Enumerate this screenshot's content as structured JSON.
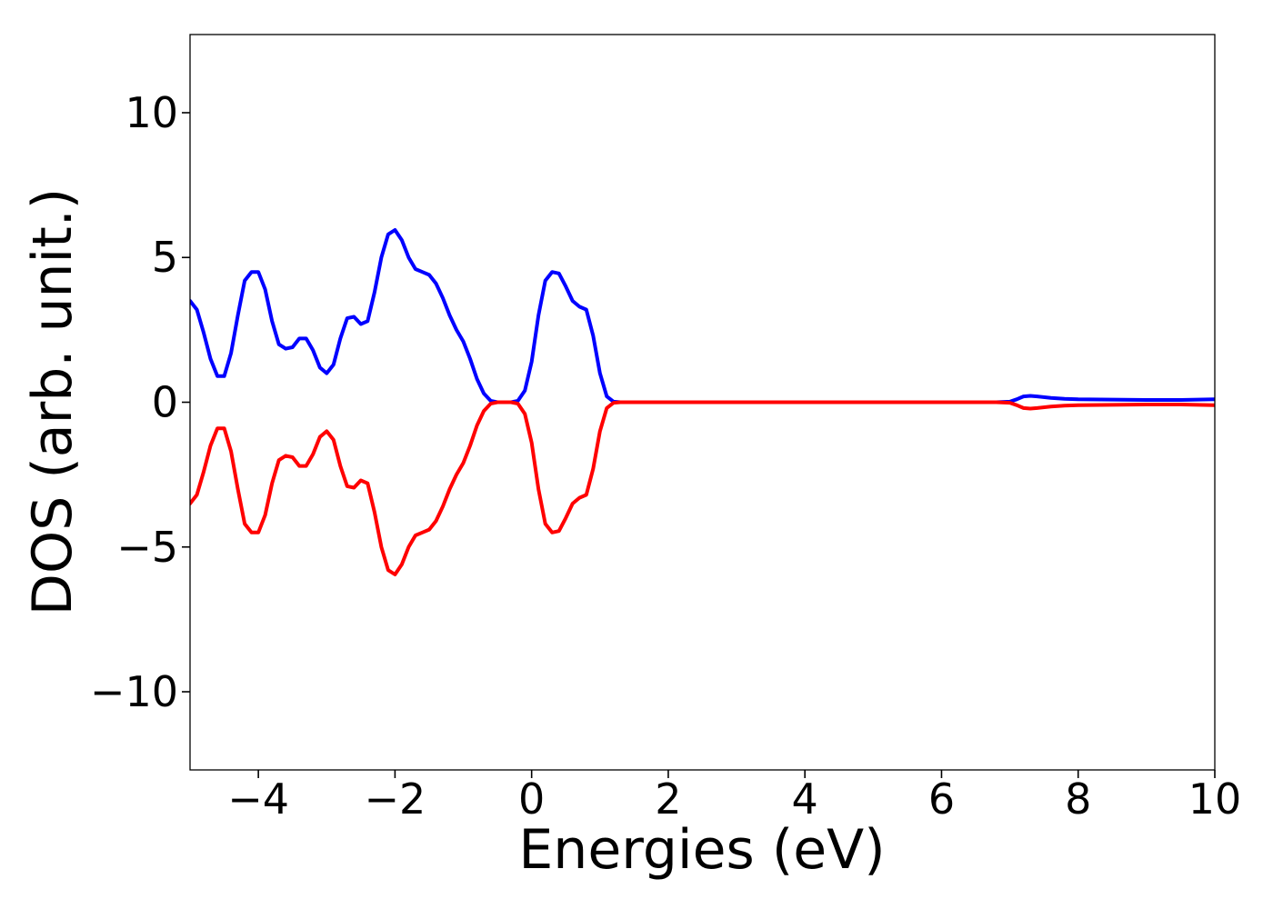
{
  "chart_data": {
    "type": "line",
    "title": "",
    "xlabel": "Energies (eV)",
    "ylabel": "DOS (arb. unit.)",
    "xlim": [
      -5,
      10
    ],
    "ylim": [
      -12.7,
      12.7
    ],
    "xticks": [
      -4,
      -2,
      0,
      2,
      4,
      6,
      8,
      10
    ],
    "xtick_labels": [
      "−4",
      "−2",
      "0",
      "2",
      "4",
      "6",
      "8",
      "10"
    ],
    "yticks": [
      -10,
      -5,
      0,
      5,
      10
    ],
    "ytick_labels": [
      "−10",
      "−5",
      "0",
      "5",
      "10"
    ],
    "grid": false,
    "legend": "none",
    "series": [
      {
        "color": "#0000ff",
        "x": [
          -5.0,
          -4.9,
          -4.8,
          -4.7,
          -4.6,
          -4.5,
          -4.4,
          -4.3,
          -4.2,
          -4.1,
          -4.0,
          -3.9,
          -3.8,
          -3.7,
          -3.6,
          -3.5,
          -3.4,
          -3.3,
          -3.2,
          -3.1,
          -3.0,
          -2.9,
          -2.8,
          -2.7,
          -2.6,
          -2.5,
          -2.4,
          -2.3,
          -2.2,
          -2.1,
          -2.0,
          -1.9,
          -1.8,
          -1.7,
          -1.6,
          -1.5,
          -1.4,
          -1.3,
          -1.2,
          -1.1,
          -1.0,
          -0.9,
          -0.8,
          -0.7,
          -0.6,
          -0.5,
          -0.4,
          -0.3,
          -0.2,
          -0.1,
          0.0,
          0.1,
          0.2,
          0.3,
          0.4,
          0.5,
          0.6,
          0.7,
          0.8,
          0.9,
          1.0,
          1.1,
          1.2,
          1.3,
          1.4,
          1.5,
          1.6,
          1.7,
          1.8,
          1.9,
          2.0,
          2.1,
          2.5,
          3.0,
          4.0,
          5.0,
          6.0,
          6.8,
          7.0,
          7.1,
          7.2,
          7.3,
          7.4,
          7.6,
          7.8,
          8.0,
          8.5,
          9.0,
          9.5,
          10.0
        ],
        "y": [
          3.5,
          3.2,
          2.4,
          1.5,
          0.9,
          0.9,
          1.7,
          3.0,
          4.2,
          4.5,
          4.5,
          3.9,
          2.8,
          2.0,
          1.85,
          1.9,
          2.2,
          2.2,
          1.8,
          1.2,
          1.0,
          1.3,
          2.2,
          2.9,
          2.95,
          2.7,
          2.8,
          3.8,
          5.0,
          5.8,
          5.95,
          5.6,
          5.0,
          4.6,
          4.5,
          4.4,
          4.1,
          3.6,
          3.0,
          2.5,
          2.1,
          1.5,
          0.8,
          0.3,
          0.05,
          0.0,
          0.0,
          0.0,
          0.05,
          0.4,
          1.4,
          3.0,
          4.2,
          4.5,
          4.45,
          4.0,
          3.5,
          3.3,
          3.2,
          2.3,
          1.0,
          0.2,
          0.02,
          0.0,
          0.0,
          0.0,
          0.0,
          0.0,
          0.0,
          0.0,
          0.0,
          0.0,
          0.0,
          0.0,
          0.0,
          0.0,
          0.0,
          0.0,
          0.02,
          0.1,
          0.2,
          0.22,
          0.2,
          0.15,
          0.12,
          0.1,
          0.09,
          0.08,
          0.08,
          0.1
        ]
      },
      {
        "color": "#ff0000",
        "x": [
          -5.0,
          -4.9,
          -4.8,
          -4.7,
          -4.6,
          -4.5,
          -4.4,
          -4.3,
          -4.2,
          -4.1,
          -4.0,
          -3.9,
          -3.8,
          -3.7,
          -3.6,
          -3.5,
          -3.4,
          -3.3,
          -3.2,
          -3.1,
          -3.0,
          -2.9,
          -2.8,
          -2.7,
          -2.6,
          -2.5,
          -2.4,
          -2.3,
          -2.2,
          -2.1,
          -2.0,
          -1.9,
          -1.8,
          -1.7,
          -1.6,
          -1.5,
          -1.4,
          -1.3,
          -1.2,
          -1.1,
          -1.0,
          -0.9,
          -0.8,
          -0.7,
          -0.6,
          -0.5,
          -0.4,
          -0.3,
          -0.2,
          -0.1,
          0.0,
          0.1,
          0.2,
          0.3,
          0.4,
          0.5,
          0.6,
          0.7,
          0.8,
          0.9,
          1.0,
          1.1,
          1.2,
          1.3,
          1.4,
          1.5,
          1.6,
          1.7,
          1.8,
          1.9,
          2.0,
          2.1,
          2.5,
          3.0,
          4.0,
          5.0,
          6.0,
          6.8,
          7.0,
          7.1,
          7.2,
          7.3,
          7.4,
          7.6,
          7.8,
          8.0,
          8.5,
          9.0,
          9.5,
          10.0
        ],
        "y": [
          -3.5,
          -3.2,
          -2.4,
          -1.5,
          -0.9,
          -0.9,
          -1.7,
          -3.0,
          -4.2,
          -4.5,
          -4.5,
          -3.9,
          -2.8,
          -2.0,
          -1.85,
          -1.9,
          -2.2,
          -2.2,
          -1.8,
          -1.2,
          -1.0,
          -1.3,
          -2.2,
          -2.9,
          -2.95,
          -2.7,
          -2.8,
          -3.8,
          -5.0,
          -5.8,
          -5.95,
          -5.6,
          -5.0,
          -4.6,
          -4.5,
          -4.4,
          -4.1,
          -3.6,
          -3.0,
          -2.5,
          -2.1,
          -1.5,
          -0.8,
          -0.3,
          -0.05,
          0.0,
          0.0,
          0.0,
          -0.05,
          -0.4,
          -1.4,
          -3.0,
          -4.2,
          -4.5,
          -4.45,
          -4.0,
          -3.5,
          -3.3,
          -3.2,
          -2.3,
          -1.0,
          -0.2,
          -0.02,
          0.0,
          0.0,
          0.0,
          0.0,
          0.0,
          0.0,
          0.0,
          0.0,
          0.0,
          0.0,
          0.0,
          0.0,
          0.0,
          0.0,
          0.0,
          -0.02,
          -0.1,
          -0.2,
          -0.22,
          -0.2,
          -0.15,
          -0.12,
          -0.1,
          -0.09,
          -0.08,
          -0.08,
          -0.1
        ]
      }
    ]
  }
}
